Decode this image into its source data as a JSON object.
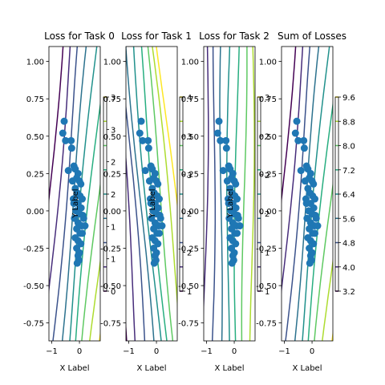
{
  "chart_data": [
    {
      "type": "contour",
      "title": "Loss for Task 0",
      "xlabel": "X Label",
      "ylabel": "Y Label",
      "xlim": [
        -1.1,
        0.75
      ],
      "ylim": [
        -0.87,
        1.1
      ],
      "xticks": [
        -1,
        0
      ],
      "yticks": [
        -0.75,
        -0.5,
        -0.25,
        0.0,
        0.25,
        0.5,
        0.75,
        1.0
      ],
      "colorbar_ticks": [
        "0",
        "1",
        "1",
        "2",
        "2",
        "3",
        "3"
      ],
      "contour_levels": 9
    },
    {
      "type": "contour",
      "title": "Loss for Task 1",
      "xlabel": "X Label",
      "ylabel": "Y Label",
      "xlim": [
        -1.1,
        0.75
      ],
      "ylim": [
        -0.87,
        1.1
      ],
      "xticks": [
        -1,
        0
      ],
      "yticks": [
        -0.75,
        -0.5,
        -0.25,
        0.0,
        0.25,
        0.5,
        0.75,
        1.0
      ],
      "colorbar_ticks": [
        "1",
        "2",
        "2",
        "3",
        "3",
        "4"
      ],
      "contour_levels": 9
    },
    {
      "type": "contour",
      "title": "Loss for Task 2",
      "xlabel": "X Label",
      "ylabel": "Y Label",
      "xlim": [
        -1.1,
        0.75
      ],
      "ylim": [
        -0.87,
        1.1
      ],
      "xticks": [
        -1,
        0
      ],
      "yticks": [
        -0.75,
        -0.5,
        -0.25,
        0.0,
        0.25,
        0.5,
        0.75,
        1.0
      ],
      "colorbar_ticks": [
        "1",
        "1",
        "2",
        "2",
        "2",
        "3"
      ],
      "contour_levels": 9
    },
    {
      "type": "contour",
      "title": "Sum of Losses",
      "xlabel": "X Label",
      "ylabel": "",
      "xlim": [
        -1.1,
        0.75
      ],
      "ylim": [
        -0.87,
        1.1
      ],
      "xticks": [
        -1,
        0
      ],
      "yticks": [
        -0.75,
        -0.5,
        -0.25,
        0.0,
        0.25,
        0.5,
        0.75,
        1.0
      ],
      "colorbar_ticks": [
        "3.2",
        "4.0",
        "4.8",
        "5.6",
        "6.4",
        "7.2",
        "8.0",
        "8.8",
        "9.6"
      ],
      "contour_levels": 9
    }
  ],
  "scatter_points": [
    [
      -0.55,
      0.6
    ],
    [
      -0.6,
      0.52
    ],
    [
      -0.5,
      0.47
    ],
    [
      -0.3,
      0.47
    ],
    [
      -0.28,
      0.42
    ],
    [
      -0.4,
      0.27
    ],
    [
      -0.2,
      0.3
    ],
    [
      -0.15,
      0.28
    ],
    [
      -0.25,
      0.2
    ],
    [
      -0.05,
      0.25
    ],
    [
      -0.1,
      0.22
    ],
    [
      0.0,
      0.2
    ],
    [
      0.05,
      0.18
    ],
    [
      -0.15,
      0.15
    ],
    [
      -0.08,
      0.12
    ],
    [
      0.02,
      0.1
    ],
    [
      0.1,
      0.08
    ],
    [
      -0.2,
      0.05
    ],
    [
      -0.05,
      0.05
    ],
    [
      0.06,
      0.02
    ],
    [
      -0.12,
      0.0
    ],
    [
      0.0,
      -0.02
    ],
    [
      0.12,
      -0.03
    ],
    [
      -0.18,
      -0.05
    ],
    [
      -0.05,
      -0.08
    ],
    [
      0.08,
      -0.1
    ],
    [
      -0.1,
      -0.12
    ],
    [
      0.02,
      -0.15
    ],
    [
      0.1,
      -0.15
    ],
    [
      -0.15,
      -0.18
    ],
    [
      -0.05,
      -0.2
    ],
    [
      0.05,
      -0.22
    ],
    [
      -0.1,
      -0.25
    ],
    [
      0.0,
      -0.28
    ],
    [
      -0.05,
      -0.3
    ],
    [
      -0.02,
      -0.33
    ],
    [
      -0.08,
      -0.35
    ],
    [
      0.15,
      -0.05
    ],
    [
      0.2,
      -0.1
    ],
    [
      -0.22,
      0.08
    ]
  ],
  "contour_colors": [
    "#440154",
    "#472d7b",
    "#3b528b",
    "#2c728e",
    "#21918c",
    "#28ae80",
    "#5ec962",
    "#addc30",
    "#fde725"
  ],
  "point_color": "#1f77b4"
}
